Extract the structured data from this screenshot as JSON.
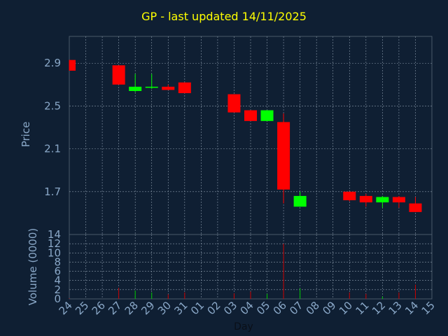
{
  "chart_data": [
    {
      "type": "candlestick",
      "title": "GP - last updated 14/11/2025",
      "xlabel": "Day",
      "ylabel": "Price",
      "ylim": [
        1.3,
        3.15
      ],
      "yticks": [
        "1.7",
        "2.1",
        "2.5",
        "2.9"
      ],
      "grid": true,
      "up_color": "#00ff00",
      "down_color": "#ff0000",
      "categories": [
        "24",
        "25",
        "26",
        "27",
        "28",
        "29",
        "30",
        "31",
        "01",
        "02",
        "03",
        "04",
        "05",
        "06",
        "07",
        "08",
        "09",
        "10",
        "11",
        "12",
        "13",
        "14",
        "15"
      ],
      "candles": [
        {
          "x": "24",
          "open": 2.93,
          "high": 2.93,
          "low": 2.83,
          "close": 2.83
        },
        {
          "x": "27",
          "open": 2.88,
          "high": 2.88,
          "low": 2.7,
          "close": 2.7
        },
        {
          "x": "28",
          "open": 2.64,
          "high": 2.8,
          "low": 2.63,
          "close": 2.68
        },
        {
          "x": "29",
          "open": 2.67,
          "high": 2.8,
          "low": 2.66,
          "close": 2.68
        },
        {
          "x": "30",
          "open": 2.68,
          "high": 2.7,
          "low": 2.65,
          "close": 2.65
        },
        {
          "x": "31",
          "open": 2.72,
          "high": 2.72,
          "low": 2.62,
          "close": 2.62
        },
        {
          "x": "03",
          "open": 2.61,
          "high": 2.61,
          "low": 2.44,
          "close": 2.44
        },
        {
          "x": "04",
          "open": 2.46,
          "high": 2.46,
          "low": 2.36,
          "close": 2.36
        },
        {
          "x": "05",
          "open": 2.36,
          "high": 2.46,
          "low": 2.36,
          "close": 2.46
        },
        {
          "x": "06",
          "open": 2.35,
          "high": 2.43,
          "low": 1.59,
          "close": 1.72
        },
        {
          "x": "07",
          "open": 1.56,
          "high": 1.7,
          "low": 1.56,
          "close": 1.66
        },
        {
          "x": "10",
          "open": 1.7,
          "high": 1.7,
          "low": 1.61,
          "close": 1.62
        },
        {
          "x": "11",
          "open": 1.66,
          "high": 1.68,
          "low": 1.56,
          "close": 1.6
        },
        {
          "x": "12",
          "open": 1.6,
          "high": 1.66,
          "low": 1.55,
          "close": 1.65
        },
        {
          "x": "13",
          "open": 1.65,
          "high": 1.66,
          "low": 1.55,
          "close": 1.6
        },
        {
          "x": "14",
          "open": 1.59,
          "high": 1.65,
          "low": 1.51,
          "close": 1.51
        }
      ]
    },
    {
      "type": "bar",
      "xlabel": "Day",
      "ylabel": "Volume (0000)",
      "ylim": [
        0,
        14
      ],
      "yticks": [
        "0",
        "2",
        "4",
        "6",
        "8",
        "10",
        "12",
        "14"
      ],
      "grid": true,
      "series": [
        {
          "x": [
            "24",
            "27",
            "28",
            "29",
            "30",
            "31",
            "03",
            "04",
            "05",
            "06",
            "07",
            "10",
            "11",
            "12",
            "13",
            "14"
          ],
          "values": [
            0.1,
            2.4,
            1.8,
            1.4,
            1.0,
            1.4,
            1.2,
            1.6,
            1.1,
            12.0,
            2.3,
            1.4,
            1.1,
            0.5,
            1.4,
            3.1
          ],
          "colors": [
            "red",
            "red",
            "green",
            "green",
            "red",
            "red",
            "red",
            "red",
            "green",
            "red",
            "green",
            "red",
            "red",
            "green",
            "red",
            "red"
          ]
        }
      ]
    }
  ]
}
